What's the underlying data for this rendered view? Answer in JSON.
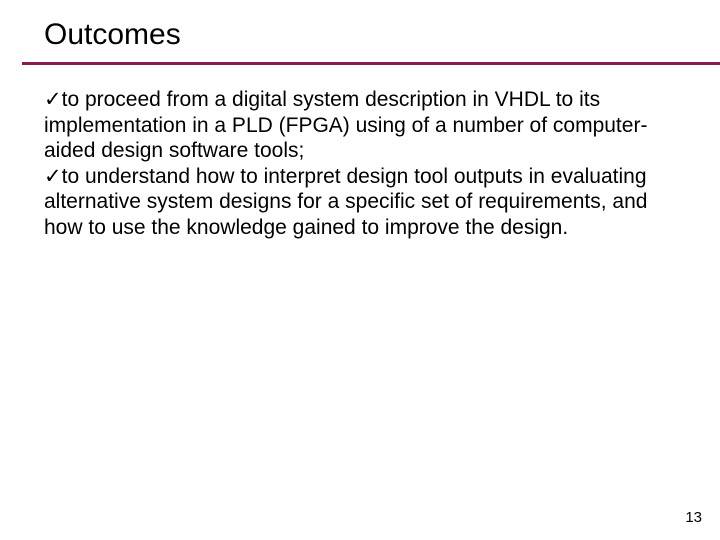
{
  "accent_color": "#8b1a4f",
  "background_color": "#ffffff",
  "text_color": "#000000",
  "title": "Outcomes",
  "title_fontsize": 30,
  "body_fontsize": 21,
  "checkmark": "✓",
  "bullets": [
    "to proceed from a digital system description in VHDL to its implementation in a PLD (FPGA) using of a number of computer-aided design software tools;",
    "to understand how to interpret design tool outputs in evaluating alternative system designs for a specific set of requirements, and how to use the knowledge gained to improve the design."
  ],
  "page_number": "13"
}
